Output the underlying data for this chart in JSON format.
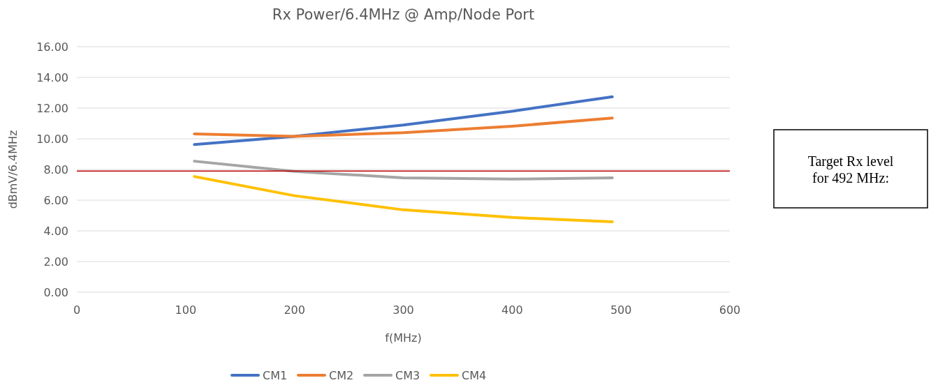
{
  "chart_data": {
    "type": "line",
    "title": "Rx Power/6.4MHz @ Amp/Node Port",
    "xlabel": "f(MHz)",
    "ylabel": "dBmV/6.4MHz",
    "x": [
      108,
      200,
      300,
      400,
      492
    ],
    "series": [
      {
        "name": "CM1",
        "color": "#4472c4",
        "values": [
          9.63,
          10.16,
          10.9,
          11.8,
          12.74
        ]
      },
      {
        "name": "CM2",
        "color": "#ed7d31",
        "values": [
          10.32,
          10.16,
          10.4,
          10.82,
          11.35
        ]
      },
      {
        "name": "CM3",
        "color": "#a5a5a5",
        "values": [
          8.54,
          7.87,
          7.46,
          7.37,
          7.46
        ]
      },
      {
        "name": "CM4",
        "color": "#ffc000",
        "values": [
          7.54,
          6.29,
          5.37,
          4.87,
          4.59
        ]
      }
    ],
    "xlim": [
      0,
      600
    ],
    "xticks": [
      0,
      100,
      200,
      300,
      400,
      500,
      600
    ],
    "ylim": [
      0,
      16
    ],
    "yticks": [
      {
        "value": 0,
        "label": "0.00"
      },
      {
        "value": 2,
        "label": "2.00"
      },
      {
        "value": 4,
        "label": "4.00"
      },
      {
        "value": 6,
        "label": "6.00"
      },
      {
        "value": 8,
        "label": "8.00"
      },
      {
        "value": 10,
        "label": "10.00"
      },
      {
        "value": 12,
        "label": "12.00"
      },
      {
        "value": 14,
        "label": "14.00"
      },
      {
        "value": 16,
        "label": "16.00"
      }
    ],
    "grid": "y",
    "legend": "bottom",
    "marker": "none",
    "line_style": "solid",
    "ref_lines": [
      {
        "axis": "y",
        "value": 7.9,
        "color": "#c00000"
      }
    ],
    "annotations": [
      "Target Rx level for 492 MHz:"
    ]
  }
}
